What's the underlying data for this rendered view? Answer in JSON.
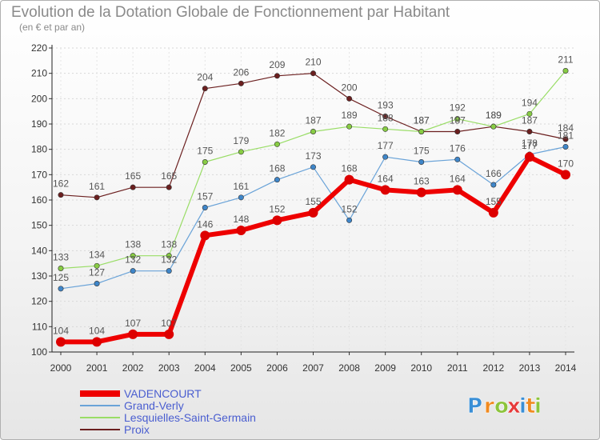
{
  "chart_data": {
    "type": "line",
    "title": "Evolution de la Dotation Globale de Fonctionnement par Habitant",
    "subtitle": "(en € et par an)",
    "xlabel": "",
    "ylabel": "",
    "ylim": [
      100,
      220
    ],
    "yticks": [
      100,
      110,
      120,
      130,
      140,
      150,
      160,
      170,
      180,
      190,
      200,
      210,
      220
    ],
    "categories": [
      "2000",
      "2001",
      "2002",
      "2003",
      "2004",
      "2005",
      "2006",
      "2007",
      "2008",
      "2009",
      "2010",
      "2011",
      "2012",
      "2013",
      "2014"
    ],
    "grid": true,
    "legend_position": "bottom-left",
    "series": [
      {
        "name": "Proix",
        "color": "#6b1f1f",
        "width": 1.2,
        "marker": "#6b1f1f",
        "values": [
          162,
          161,
          165,
          165,
          204,
          206,
          209,
          210,
          200,
          193,
          187,
          187,
          189,
          187,
          184
        ]
      },
      {
        "name": "Lesquielles-Saint-Germain",
        "color": "#99dd66",
        "width": 1.2,
        "marker": "#88cc44",
        "values": [
          133,
          134,
          138,
          138,
          175,
          179,
          182,
          187,
          189,
          188,
          187,
          192,
          189,
          194,
          211
        ]
      },
      {
        "name": "Grand-Verly",
        "color": "#6aa3d8",
        "width": 1.2,
        "marker": "#3f86c9",
        "values": [
          125,
          127,
          132,
          132,
          157,
          161,
          168,
          173,
          152,
          177,
          175,
          176,
          166,
          178,
          181
        ]
      },
      {
        "name": "VADENCOURT",
        "color": "#ee0000",
        "width": 6,
        "marker": "#dd0000",
        "values": [
          104,
          104,
          107,
          107,
          146,
          148,
          152,
          155,
          168,
          164,
          163,
          164,
          155,
          177,
          170
        ]
      }
    ],
    "legend": [
      "VADENCOURT",
      "Grand-Verly",
      "Lesquielles-Saint-Germain",
      "Proix"
    ]
  },
  "brand": {
    "letters": [
      "P",
      "r",
      "o",
      "x",
      "i",
      "t",
      "i"
    ],
    "colors": [
      "#3a8fd6",
      "#f08a20",
      "#8cc43c",
      "#e63a3a",
      "#3a8fd6",
      "#f08a20",
      "#8cc43c"
    ]
  }
}
